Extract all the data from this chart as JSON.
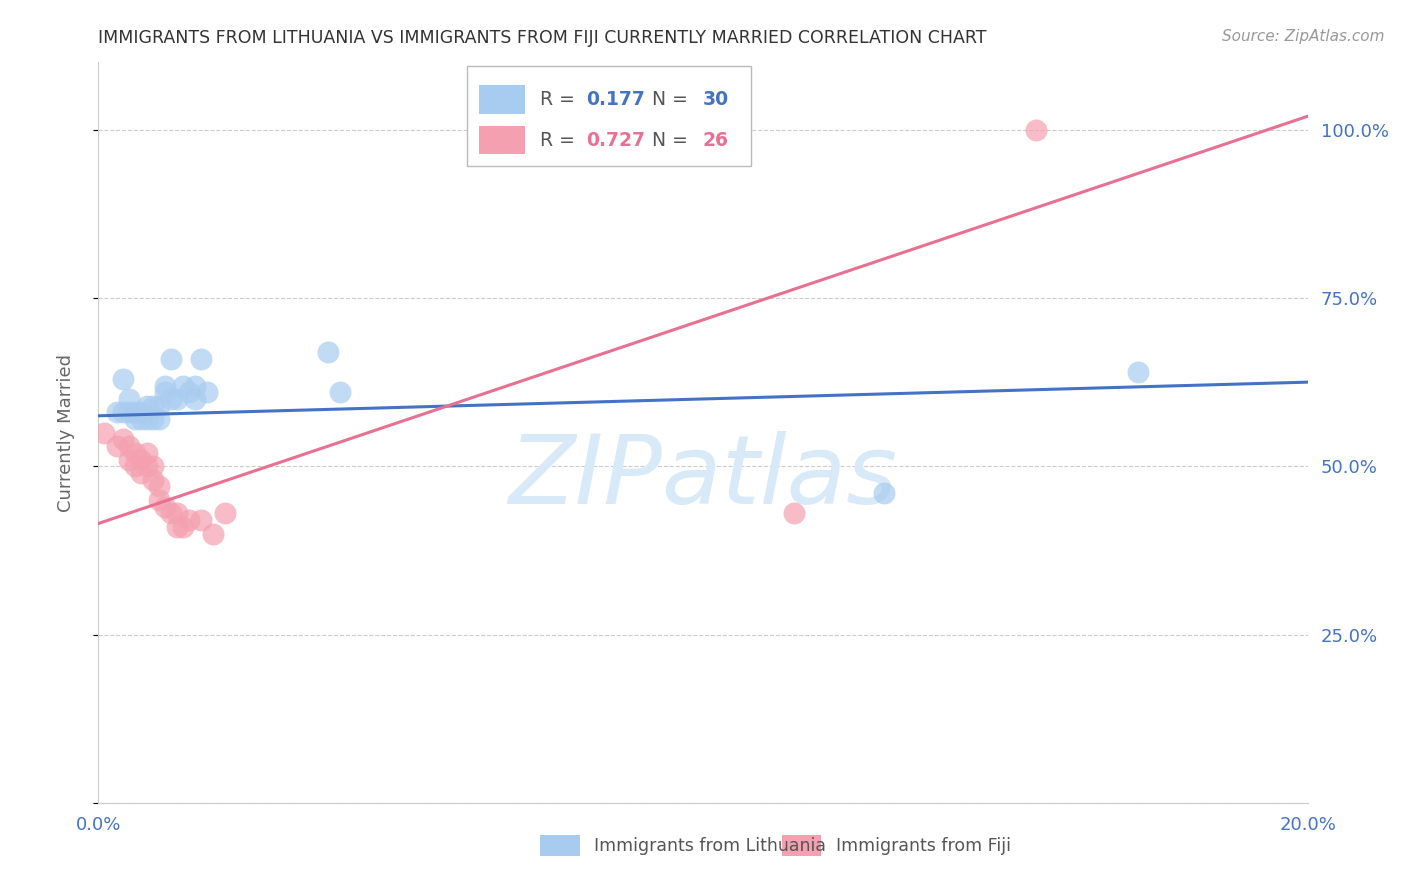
{
  "title": "IMMIGRANTS FROM LITHUANIA VS IMMIGRANTS FROM FIJI CURRENTLY MARRIED CORRELATION CHART",
  "source": "Source: ZipAtlas.com",
  "ylabel_label": "Currently Married",
  "x_label_bottom": "Immigrants from Lithuania",
  "x_label_bottom2": "Immigrants from Fiji",
  "watermark": "ZIPatlas",
  "blue_R": 0.177,
  "blue_N": 30,
  "pink_R": 0.727,
  "pink_N": 26,
  "xlim": [
    0.0,
    0.2
  ],
  "ylim": [
    0.0,
    1.1
  ],
  "yticks": [
    0.0,
    0.25,
    0.5,
    0.75,
    1.0
  ],
  "ytick_labels": [
    "",
    "25.0%",
    "50.0%",
    "75.0%",
    "100.0%"
  ],
  "xticks": [
    0.0,
    0.04,
    0.08,
    0.12,
    0.16,
    0.2
  ],
  "xtick_labels": [
    "0.0%",
    "",
    "",
    "",
    "",
    "20.0%"
  ],
  "blue_scatter_x": [
    0.003,
    0.004,
    0.004,
    0.005,
    0.005,
    0.006,
    0.006,
    0.007,
    0.007,
    0.008,
    0.008,
    0.009,
    0.009,
    0.01,
    0.01,
    0.011,
    0.011,
    0.012,
    0.012,
    0.013,
    0.014,
    0.015,
    0.016,
    0.016,
    0.017,
    0.018,
    0.038,
    0.04,
    0.13,
    0.172
  ],
  "blue_scatter_y": [
    0.58,
    0.63,
    0.58,
    0.6,
    0.58,
    0.58,
    0.57,
    0.58,
    0.57,
    0.59,
    0.57,
    0.59,
    0.57,
    0.59,
    0.57,
    0.62,
    0.61,
    0.6,
    0.66,
    0.6,
    0.62,
    0.61,
    0.6,
    0.62,
    0.66,
    0.61,
    0.67,
    0.61,
    0.46,
    0.64
  ],
  "pink_scatter_x": [
    0.001,
    0.003,
    0.004,
    0.005,
    0.005,
    0.006,
    0.006,
    0.007,
    0.007,
    0.008,
    0.008,
    0.009,
    0.009,
    0.01,
    0.01,
    0.011,
    0.012,
    0.013,
    0.013,
    0.014,
    0.015,
    0.017,
    0.019,
    0.021,
    0.115,
    0.155
  ],
  "pink_scatter_y": [
    0.55,
    0.53,
    0.54,
    0.53,
    0.51,
    0.52,
    0.5,
    0.51,
    0.49,
    0.52,
    0.5,
    0.5,
    0.48,
    0.47,
    0.45,
    0.44,
    0.43,
    0.43,
    0.41,
    0.41,
    0.42,
    0.42,
    0.4,
    0.43,
    0.43,
    1.0
  ],
  "blue_line_x": [
    0.0,
    0.2
  ],
  "blue_line_y": [
    0.575,
    0.625
  ],
  "pink_line_x": [
    0.0,
    0.2
  ],
  "pink_line_y": [
    0.415,
    1.02
  ],
  "blue_color": "#A8CCF0",
  "pink_color": "#F4A0B0",
  "blue_line_color": "#4472C4",
  "pink_line_color": "#E87090",
  "grid_color": "#CCCCCC",
  "tick_color": "#4472C4",
  "title_color": "#333333",
  "watermark_color": "#D8EAF8"
}
